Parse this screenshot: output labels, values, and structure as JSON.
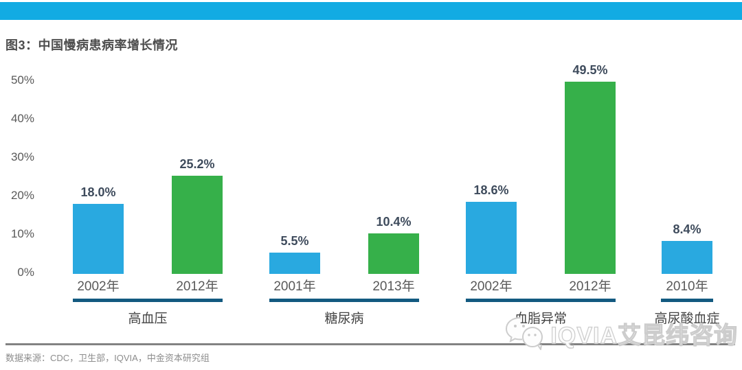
{
  "page": {
    "title": "图3：中国慢病患病率增长情况",
    "source_note": "数据来源：CDC，卫生部，IQVIA，中金资本研究组",
    "watermark_text": "IQVIA艾昆纬咨询",
    "watermark_icon": "wechat-icon"
  },
  "colors": {
    "accent_bar": "#12ABE3",
    "bar_blue": "#29A9E0",
    "bar_green": "#36B04A",
    "underline_navy": "#135A80",
    "value_label": "#3E4B5C",
    "tick_label": "#595959",
    "year_label": "#595959",
    "group_label": "#434343",
    "title_color": "#4D4D4D",
    "divider_gray": "#828282",
    "source_text": "#8C8C8C"
  },
  "chart_data": {
    "type": "bar",
    "title": "图3：中国慢病患病率增长情况",
    "xlabel": "",
    "ylabel": "",
    "unit": "%",
    "ylim": [
      0,
      50
    ],
    "grid": false,
    "legend": null,
    "yticks": [
      "50%",
      "40%",
      "30%",
      "20%",
      "10%",
      "0%"
    ],
    "groups": [
      {
        "name": "高血压",
        "bars": [
          {
            "year": "2002年",
            "value": 18.0,
            "label": "18.0%",
            "color": "blue"
          },
          {
            "year": "2012年",
            "value": 25.2,
            "label": "25.2%",
            "color": "green"
          }
        ]
      },
      {
        "name": "糖尿病",
        "bars": [
          {
            "year": "2001年",
            "value": 5.5,
            "label": "5.5%",
            "color": "blue"
          },
          {
            "year": "2013年",
            "value": 10.4,
            "label": "10.4%",
            "color": "green"
          }
        ]
      },
      {
        "name": "血脂异常",
        "bars": [
          {
            "year": "2002年",
            "value": 18.6,
            "label": "18.6%",
            "color": "blue"
          },
          {
            "year": "2012年",
            "value": 49.5,
            "label": "49.5%",
            "color": "green"
          }
        ]
      },
      {
        "name": "高尿酸血症",
        "bars": [
          {
            "year": "2010年",
            "value": 8.4,
            "label": "8.4%",
            "color": "blue"
          }
        ]
      }
    ]
  }
}
